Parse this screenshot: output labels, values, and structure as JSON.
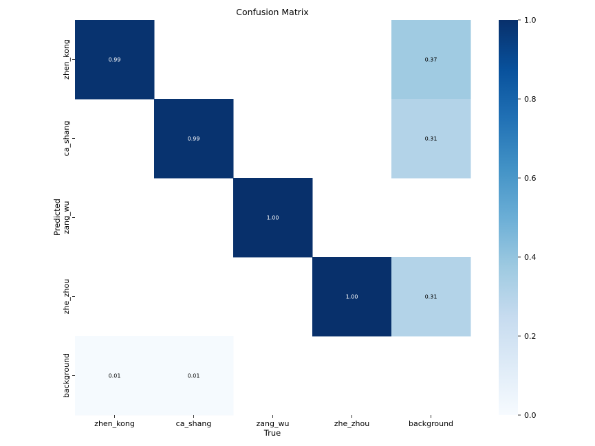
{
  "chart_data": {
    "type": "heatmap",
    "title": "Confusion Matrix",
    "xlabel": "True",
    "ylabel": "Predicted",
    "x_categories": [
      "zhen_kong",
      "ca_shang",
      "zang_wu",
      "zhe_zhou",
      "background"
    ],
    "y_categories": [
      "zhen_kong",
      "ca_shang",
      "zang_wu",
      "zhe_zhou",
      "background"
    ],
    "values": [
      [
        0.99,
        null,
        null,
        null,
        0.37
      ],
      [
        null,
        0.99,
        null,
        null,
        0.31
      ],
      [
        null,
        null,
        1.0,
        null,
        null
      ],
      [
        null,
        null,
        null,
        1.0,
        0.31
      ],
      [
        0.01,
        0.01,
        null,
        null,
        null
      ]
    ],
    "cell_labels": [
      [
        "0.99",
        "",
        "",
        "",
        "0.37"
      ],
      [
        "",
        "0.99",
        "",
        "",
        "0.31"
      ],
      [
        "",
        "",
        "1.00",
        "",
        ""
      ],
      [
        "",
        "",
        "",
        "1.00",
        "0.31"
      ],
      [
        "0.01",
        "0.01",
        "",
        "",
        ""
      ]
    ],
    "colorbar": {
      "colormap": "Blues",
      "range": [
        0.0,
        1.0
      ],
      "ticks": [
        "0.0",
        "0.2",
        "0.4",
        "0.6",
        "0.8",
        "1.0"
      ]
    },
    "grid": false,
    "colors": {
      "empty_cell": "#ffffff",
      "text_dark": "#000000",
      "text_light": "#ffffff"
    }
  }
}
